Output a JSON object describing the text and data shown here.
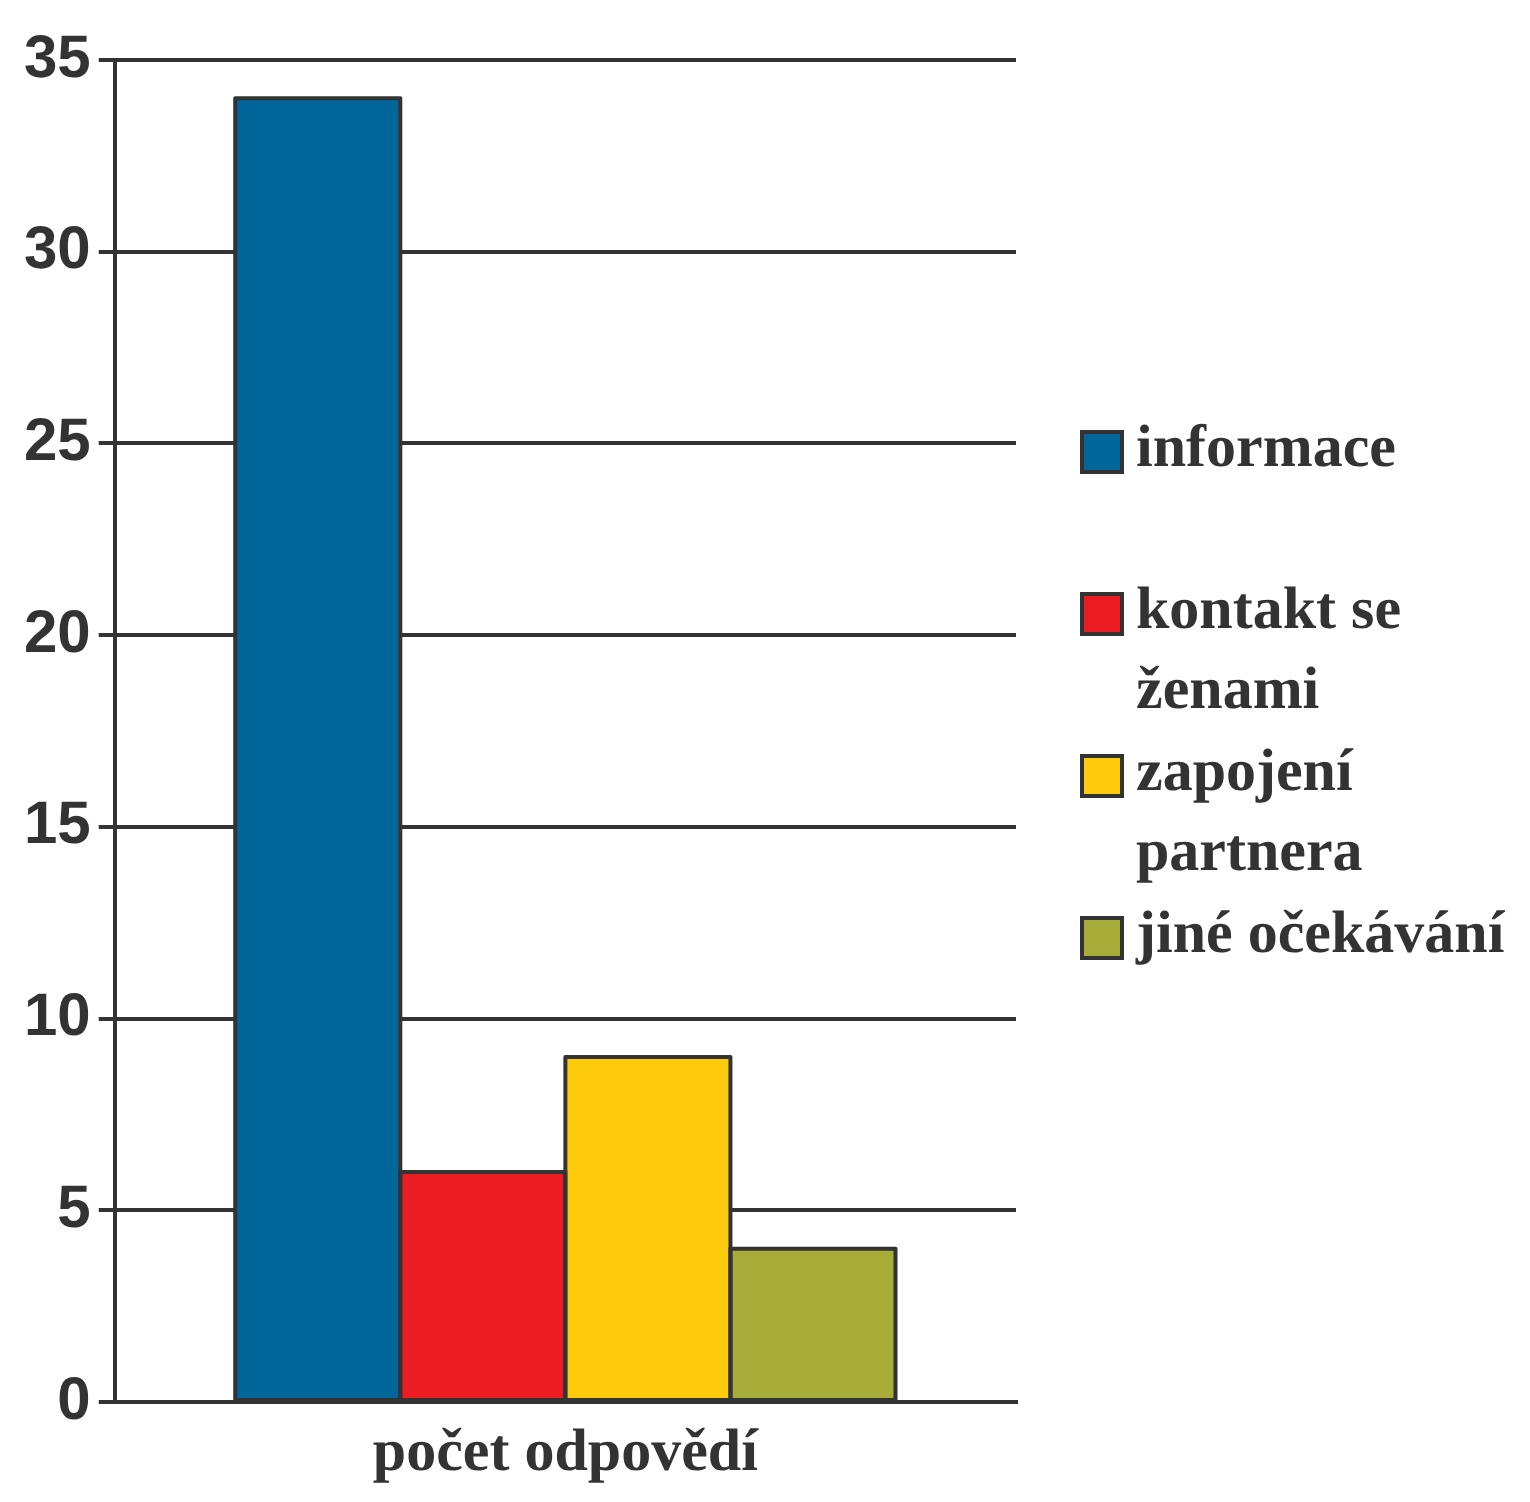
{
  "chart_data": {
    "type": "bar",
    "categories": [
      null,
      null,
      null,
      null
    ],
    "xlabel": "počet odpovědí",
    "series": [
      {
        "name": "informace",
        "color": "#00669a",
        "values": [
          34,
          null,
          null,
          null
        ]
      },
      {
        "name": "kontakt se ženami",
        "color": "#ec1c24",
        "values": [
          null,
          6,
          null,
          null
        ]
      },
      {
        "name": "zapojení partnera",
        "color": "#fdcb0b",
        "values": [
          null,
          null,
          9,
          null
        ]
      },
      {
        "name": "jiné očekávání",
        "color": "#a7ad38",
        "values": [
          null,
          null,
          null,
          4
        ]
      }
    ],
    "ylim": [
      0,
      35
    ],
    "yticks": [
      0,
      5,
      10,
      15,
      20,
      25,
      30,
      35
    ],
    "grid": "y",
    "legend": "right"
  }
}
